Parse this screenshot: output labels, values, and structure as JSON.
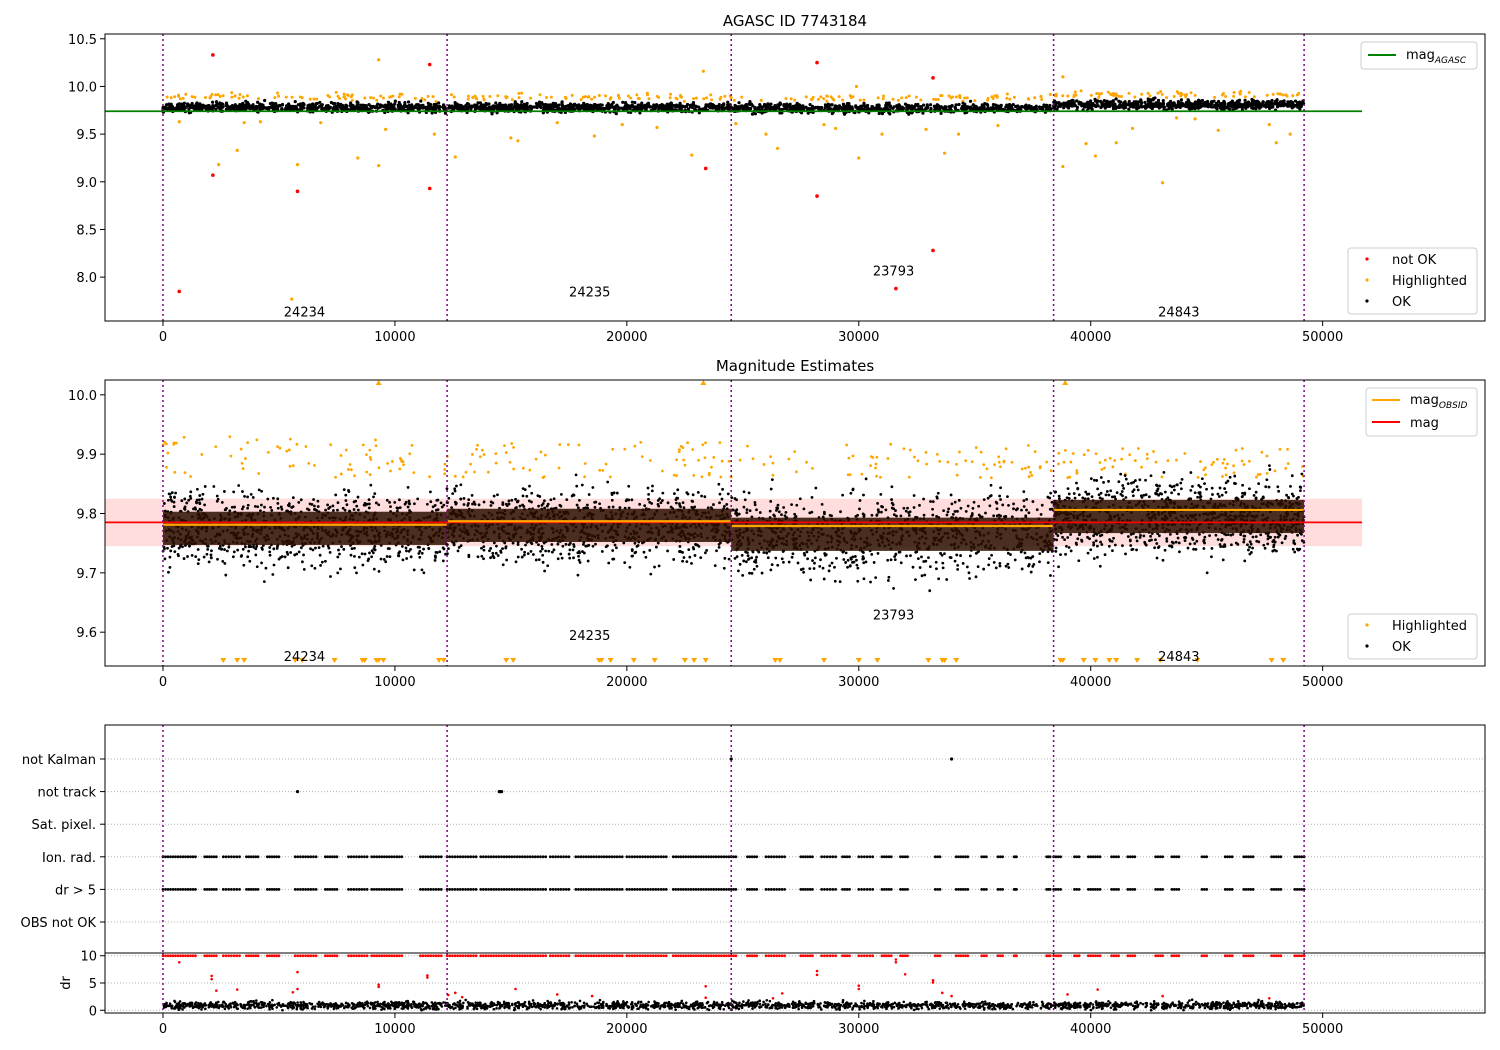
{
  "figure": {
    "colors": {
      "ok": "#000000",
      "not_ok": "#ff0000",
      "highlighted": "#ffa500",
      "mag_agasc": "#008000",
      "mag": "#ff0000",
      "mag_obsid": "#ffa500",
      "boundary": "#800080",
      "band": "#ffdddd"
    }
  },
  "chart_data": [
    {
      "id": "agasc",
      "type": "scatter",
      "title": "AGASC ID 7743184",
      "xlim": [
        -2500,
        57000
      ],
      "ylim": [
        7.54,
        10.55
      ],
      "xticks": [
        0,
        10000,
        20000,
        30000,
        40000,
        50000
      ],
      "yticks": [
        8.0,
        8.5,
        9.0,
        9.5,
        10.0,
        10.5
      ],
      "ytick_labels": [
        "8.0",
        "8.5",
        "9.0",
        "9.5",
        "10.0",
        "10.5"
      ],
      "boundaries": [
        0,
        12250,
        24500,
        38400,
        49200
      ],
      "legend_upper": {
        "placement": "top-right",
        "entries": [
          {
            "label": "mag",
            "sub": "AGASC",
            "kind": "line",
            "color": "#008000"
          }
        ]
      },
      "legend_lower": {
        "placement": "bottom-right",
        "entries": [
          {
            "label": "not OK",
            "kind": "marker",
            "color": "#ff0000"
          },
          {
            "label": "Highlighted",
            "kind": "marker",
            "color": "#ffa500"
          },
          {
            "label": "OK",
            "kind": "marker",
            "color": "#000000"
          }
        ]
      },
      "obsid_labels": [
        {
          "text": "24234",
          "x": 6100,
          "y": 7.64
        },
        {
          "text": "24235",
          "x": 18400,
          "y": 7.85
        },
        {
          "text": "23793",
          "x": 31500,
          "y": 8.07
        },
        {
          "text": "24843",
          "x": 43800,
          "y": 7.64
        }
      ],
      "lines": [
        {
          "name": "mag AGASC",
          "x": [
            -2500,
            51700
          ],
          "y": [
            9.74,
            9.74
          ],
          "color": "#008000"
        }
      ],
      "segments": [
        {
          "x0": 0,
          "x1": 12250,
          "center": 9.78,
          "spread": 0.035
        },
        {
          "x0": 12250,
          "x1": 24500,
          "center": 9.78,
          "spread": 0.035
        },
        {
          "x0": 24500,
          "x1": 38400,
          "center": 9.77,
          "spread": 0.035
        },
        {
          "x0": 38400,
          "x1": 49200,
          "center": 9.81,
          "spread": 0.035
        }
      ],
      "highlighted_band": {
        "center": 9.89,
        "spread": 0.025,
        "count": 260
      },
      "not_ok_points": [
        {
          "x": 700,
          "y": 7.85
        },
        {
          "x": 2150,
          "y": 10.33
        },
        {
          "x": 2150,
          "y": 9.07
        },
        {
          "x": 5800,
          "y": 8.9
        },
        {
          "x": 11500,
          "y": 10.23
        },
        {
          "x": 11500,
          "y": 8.93
        },
        {
          "x": 23400,
          "y": 9.14
        },
        {
          "x": 28200,
          "y": 10.25
        },
        {
          "x": 28200,
          "y": 8.85
        },
        {
          "x": 31600,
          "y": 7.88
        },
        {
          "x": 33200,
          "y": 10.09
        },
        {
          "x": 33200,
          "y": 8.28
        }
      ],
      "highlighted_outliers": [
        {
          "x": 700,
          "y": 9.63
        },
        {
          "x": 2400,
          "y": 9.18
        },
        {
          "x": 3200,
          "y": 9.33
        },
        {
          "x": 3500,
          "y": 9.62
        },
        {
          "x": 4200,
          "y": 9.63
        },
        {
          "x": 5550,
          "y": 7.77
        },
        {
          "x": 5800,
          "y": 9.18
        },
        {
          "x": 6800,
          "y": 9.62
        },
        {
          "x": 8400,
          "y": 9.25
        },
        {
          "x": 9300,
          "y": 10.28
        },
        {
          "x": 9300,
          "y": 9.17
        },
        {
          "x": 9600,
          "y": 9.55
        },
        {
          "x": 11700,
          "y": 9.5
        },
        {
          "x": 12600,
          "y": 9.26
        },
        {
          "x": 15000,
          "y": 9.46
        },
        {
          "x": 15300,
          "y": 9.43
        },
        {
          "x": 17000,
          "y": 9.62
        },
        {
          "x": 18600,
          "y": 9.48
        },
        {
          "x": 19800,
          "y": 9.6
        },
        {
          "x": 21300,
          "y": 9.57
        },
        {
          "x": 22800,
          "y": 9.28
        },
        {
          "x": 23300,
          "y": 10.16
        },
        {
          "x": 24700,
          "y": 9.61
        },
        {
          "x": 26000,
          "y": 9.5
        },
        {
          "x": 26500,
          "y": 9.35
        },
        {
          "x": 28500,
          "y": 9.6
        },
        {
          "x": 29000,
          "y": 9.56
        },
        {
          "x": 29900,
          "y": 10.0
        },
        {
          "x": 30000,
          "y": 9.25
        },
        {
          "x": 31000,
          "y": 9.5
        },
        {
          "x": 32900,
          "y": 9.55
        },
        {
          "x": 33700,
          "y": 9.3
        },
        {
          "x": 34300,
          "y": 9.5
        },
        {
          "x": 36000,
          "y": 9.59
        },
        {
          "x": 38800,
          "y": 10.1
        },
        {
          "x": 38800,
          "y": 9.16
        },
        {
          "x": 39800,
          "y": 9.4
        },
        {
          "x": 40200,
          "y": 9.27
        },
        {
          "x": 41100,
          "y": 9.41
        },
        {
          "x": 41800,
          "y": 9.56
        },
        {
          "x": 43100,
          "y": 8.99
        },
        {
          "x": 43700,
          "y": 9.67
        },
        {
          "x": 44500,
          "y": 9.66
        },
        {
          "x": 45500,
          "y": 9.54
        },
        {
          "x": 47700,
          "y": 9.6
        },
        {
          "x": 48000,
          "y": 9.41
        },
        {
          "x": 48600,
          "y": 9.5
        }
      ]
    },
    {
      "id": "estimates",
      "type": "scatter",
      "title": "Magnitude Estimates",
      "xlim": [
        -2500,
        57000
      ],
      "ylim": [
        9.543,
        10.025
      ],
      "xticks": [
        0,
        10000,
        20000,
        30000,
        40000,
        50000
      ],
      "yticks": [
        9.6,
        9.7,
        9.8,
        9.9,
        10.0
      ],
      "ytick_labels": [
        "9.6",
        "9.7",
        "9.8",
        "9.9",
        "10.0"
      ],
      "boundaries": [
        0,
        12250,
        24500,
        38400,
        49200
      ],
      "legend_upper": {
        "placement": "top-right",
        "entries": [
          {
            "label": "mag",
            "sub": "OBSID",
            "kind": "line",
            "color": "#ffa500"
          },
          {
            "label": "mag",
            "kind": "line",
            "color": "#ff0000"
          }
        ]
      },
      "legend_lower": {
        "placement": "bottom-right",
        "entries": [
          {
            "label": "Highlighted",
            "kind": "marker",
            "color": "#ffa500"
          },
          {
            "label": "OK",
            "kind": "marker",
            "color": "#000000"
          }
        ]
      },
      "obsid_labels": [
        {
          "text": "24234",
          "x": 6100,
          "y": 9.56
        },
        {
          "text": "24235",
          "x": 18400,
          "y": 9.595
        },
        {
          "text": "23793",
          "x": 31500,
          "y": 9.63
        },
        {
          "text": "24843",
          "x": 43800,
          "y": 9.56
        }
      ],
      "mag_line": {
        "x": [
          -2500,
          51700
        ],
        "y": 9.785,
        "band": [
          9.745,
          9.825
        ]
      },
      "obsid_mags": [
        {
          "x0": 0,
          "x1": 12250,
          "y": 9.781
        },
        {
          "x0": 12250,
          "x1": 24500,
          "y": 9.787
        },
        {
          "x0": 24500,
          "x1": 38400,
          "y": 9.779
        },
        {
          "x0": 38400,
          "x1": 49200,
          "y": 9.806
        }
      ],
      "segments": [
        {
          "x0": 0,
          "x1": 12250,
          "center": 9.775,
          "spread": 0.045,
          "spike_top": 9.93
        },
        {
          "x0": 12250,
          "x1": 24500,
          "center": 9.78,
          "spread": 0.045,
          "spike_top": 9.92
        },
        {
          "x0": 24500,
          "x1": 38400,
          "center": 9.765,
          "spread": 0.05,
          "spike_top": 9.92
        },
        {
          "x0": 38400,
          "x1": 49200,
          "center": 9.795,
          "spread": 0.045,
          "spike_top": 9.91
        }
      ],
      "clipped_markers_x": [
        2600,
        3200,
        3500,
        5700,
        6000,
        7400,
        8600,
        8700,
        9200,
        9300,
        9500,
        11900,
        12100,
        14800,
        15100,
        18800,
        18900,
        19300,
        20300,
        21200,
        22500,
        22900,
        23400,
        26400,
        26600,
        28500,
        30000,
        30800,
        33000,
        33600,
        33700,
        34200,
        38700,
        38800,
        39700,
        40200,
        40800,
        41100,
        42000,
        43000,
        44600,
        47800,
        48300
      ],
      "top_markers_x": [
        9300,
        23300,
        38900
      ]
    },
    {
      "id": "flags",
      "type": "scatter",
      "xlim": [
        -2500,
        57000
      ],
      "xticks": [
        0,
        10000,
        20000,
        30000,
        40000,
        50000
      ],
      "categories": [
        "not Kalman",
        "not track",
        "Sat. pixel.",
        "Ion. rad.",
        "dr > 5",
        "OBS not OK"
      ],
      "boundaries": [
        0,
        12250,
        24500,
        38400,
        49200
      ],
      "flag_points": {
        "not Kalman": [
          24500,
          34000
        ],
        "not track": [
          5800,
          14500,
          14550,
          14600
        ]
      },
      "flag_clusters": [
        {
          "x0": 0,
          "x1": 1400
        },
        {
          "x0": 1800,
          "x1": 2300
        },
        {
          "x0": 2600,
          "x1": 3300
        },
        {
          "x0": 3600,
          "x1": 4100
        },
        {
          "x0": 4500,
          "x1": 5000
        },
        {
          "x0": 5700,
          "x1": 6600
        },
        {
          "x0": 7000,
          "x1": 7500
        },
        {
          "x0": 8000,
          "x1": 8800
        },
        {
          "x0": 9000,
          "x1": 10300
        },
        {
          "x0": 11100,
          "x1": 12000
        },
        {
          "x0": 12250,
          "x1": 13500
        },
        {
          "x0": 13700,
          "x1": 16500
        },
        {
          "x0": 16700,
          "x1": 17500
        },
        {
          "x0": 17800,
          "x1": 19800
        },
        {
          "x0": 20000,
          "x1": 21700
        },
        {
          "x0": 22000,
          "x1": 24400
        },
        {
          "x0": 24500,
          "x1": 24700
        },
        {
          "x0": 25200,
          "x1": 25600
        },
        {
          "x0": 26000,
          "x1": 26800
        },
        {
          "x0": 27500,
          "x1": 28000
        },
        {
          "x0": 28400,
          "x1": 29000
        },
        {
          "x0": 29300,
          "x1": 29600
        },
        {
          "x0": 30000,
          "x1": 30600
        },
        {
          "x0": 31000,
          "x1": 31400
        },
        {
          "x0": 31800,
          "x1": 32100
        },
        {
          "x0": 33300,
          "x1": 33500
        },
        {
          "x0": 34200,
          "x1": 34700
        },
        {
          "x0": 35300,
          "x1": 35500
        },
        {
          "x0": 36000,
          "x1": 36200
        },
        {
          "x0": 36700,
          "x1": 36800
        },
        {
          "x0": 38100,
          "x1": 38250
        },
        {
          "x0": 38400,
          "x1": 38700
        },
        {
          "x0": 39300,
          "x1": 39500
        },
        {
          "x0": 39900,
          "x1": 40400
        },
        {
          "x0": 40900,
          "x1": 41200
        },
        {
          "x0": 41600,
          "x1": 41900
        },
        {
          "x0": 42800,
          "x1": 43100
        },
        {
          "x0": 43500,
          "x1": 43800
        },
        {
          "x0": 44800,
          "x1": 45000
        },
        {
          "x0": 45800,
          "x1": 46100
        },
        {
          "x0": 46600,
          "x1": 47000
        },
        {
          "x0": 47800,
          "x1": 48200
        },
        {
          "x0": 48800,
          "x1": 49200
        }
      ]
    },
    {
      "id": "dr",
      "type": "scatter",
      "ylabel": "dr",
      "xlim": [
        -2500,
        57000
      ],
      "ylim": [
        -0.5,
        10.5
      ],
      "xticks": [
        0,
        10000,
        20000,
        30000,
        40000,
        50000
      ],
      "xtick_labels": [
        "0",
        "10000",
        "20000",
        "30000",
        "40000",
        "50000"
      ],
      "yticks": [
        0,
        5,
        10
      ],
      "ytick_labels": [
        "0",
        "5",
        "10"
      ],
      "boundaries": [
        0,
        12250,
        24500,
        38400,
        49200
      ],
      "dr_ok": {
        "x0": 0,
        "x1": 49200,
        "center": 0.9,
        "spread": 0.5
      },
      "dr_scattered": [
        {
          "x": 700,
          "y": 8.8
        },
        {
          "x": 2100,
          "y": 6.3
        },
        {
          "x": 2100,
          "y": 5.7
        },
        {
          "x": 2300,
          "y": 3.6
        },
        {
          "x": 3200,
          "y": 3.8
        },
        {
          "x": 5600,
          "y": 3.3
        },
        {
          "x": 5800,
          "y": 7.0
        },
        {
          "x": 5800,
          "y": 3.9
        },
        {
          "x": 9300,
          "y": 4.7
        },
        {
          "x": 9300,
          "y": 4.3
        },
        {
          "x": 11400,
          "y": 6.4
        },
        {
          "x": 11400,
          "y": 6.0
        },
        {
          "x": 12300,
          "y": 2.8
        },
        {
          "x": 12600,
          "y": 3.2
        },
        {
          "x": 12900,
          "y": 2.4
        },
        {
          "x": 15200,
          "y": 3.9
        },
        {
          "x": 17000,
          "y": 2.9
        },
        {
          "x": 18500,
          "y": 2.6
        },
        {
          "x": 23400,
          "y": 4.4
        },
        {
          "x": 23400,
          "y": 2.3
        },
        {
          "x": 26300,
          "y": 2.2
        },
        {
          "x": 26700,
          "y": 3.1
        },
        {
          "x": 28200,
          "y": 7.2
        },
        {
          "x": 28200,
          "y": 6.5
        },
        {
          "x": 30000,
          "y": 4.5
        },
        {
          "x": 30000,
          "y": 3.9
        },
        {
          "x": 31600,
          "y": 9.3
        },
        {
          "x": 31600,
          "y": 8.8
        },
        {
          "x": 32000,
          "y": 6.6
        },
        {
          "x": 33200,
          "y": 5.5
        },
        {
          "x": 33200,
          "y": 5.1
        },
        {
          "x": 33600,
          "y": 3.2
        },
        {
          "x": 34000,
          "y": 2.6
        },
        {
          "x": 39000,
          "y": 2.9
        },
        {
          "x": 40300,
          "y": 3.8
        },
        {
          "x": 43100,
          "y": 2.6
        },
        {
          "x": 47700,
          "y": 2.2
        }
      ],
      "dr_high_clusters": [
        {
          "x0": 0,
          "x1": 1400
        },
        {
          "x0": 1800,
          "x1": 2300
        },
        {
          "x0": 2600,
          "x1": 3300
        },
        {
          "x0": 3600,
          "x1": 4100
        },
        {
          "x0": 4500,
          "x1": 5000
        },
        {
          "x0": 5700,
          "x1": 6600
        },
        {
          "x0": 7000,
          "x1": 7500
        },
        {
          "x0": 8000,
          "x1": 8800
        },
        {
          "x0": 9000,
          "x1": 10300
        },
        {
          "x0": 11100,
          "x1": 12000
        },
        {
          "x0": 12250,
          "x1": 13500
        },
        {
          "x0": 13700,
          "x1": 16500
        },
        {
          "x0": 16700,
          "x1": 17500
        },
        {
          "x0": 17800,
          "x1": 19800
        },
        {
          "x0": 20000,
          "x1": 21700
        },
        {
          "x0": 22000,
          "x1": 24400
        },
        {
          "x0": 24500,
          "x1": 24700
        },
        {
          "x0": 25200,
          "x1": 25600
        },
        {
          "x0": 26000,
          "x1": 26800
        },
        {
          "x0": 27500,
          "x1": 28000
        },
        {
          "x0": 28400,
          "x1": 29000
        },
        {
          "x0": 29300,
          "x1": 29600
        },
        {
          "x0": 30000,
          "x1": 30600
        },
        {
          "x0": 31000,
          "x1": 31400
        },
        {
          "x0": 31800,
          "x1": 32100
        },
        {
          "x0": 33300,
          "x1": 33500
        },
        {
          "x0": 34200,
          "x1": 34700
        },
        {
          "x0": 35300,
          "x1": 35500
        },
        {
          "x0": 36000,
          "x1": 36200
        },
        {
          "x0": 36700,
          "x1": 36800
        },
        {
          "x0": 38100,
          "x1": 38250
        },
        {
          "x0": 38400,
          "x1": 38700
        },
        {
          "x0": 39300,
          "x1": 39500
        },
        {
          "x0": 39900,
          "x1": 40400
        },
        {
          "x0": 40900,
          "x1": 41200
        },
        {
          "x0": 41600,
          "x1": 41900
        },
        {
          "x0": 42800,
          "x1": 43100
        },
        {
          "x0": 43500,
          "x1": 43800
        },
        {
          "x0": 44800,
          "x1": 45000
        },
        {
          "x0": 45800,
          "x1": 46100
        },
        {
          "x0": 46600,
          "x1": 47000
        },
        {
          "x0": 47800,
          "x1": 48200
        },
        {
          "x0": 48800,
          "x1": 49200
        }
      ]
    }
  ]
}
